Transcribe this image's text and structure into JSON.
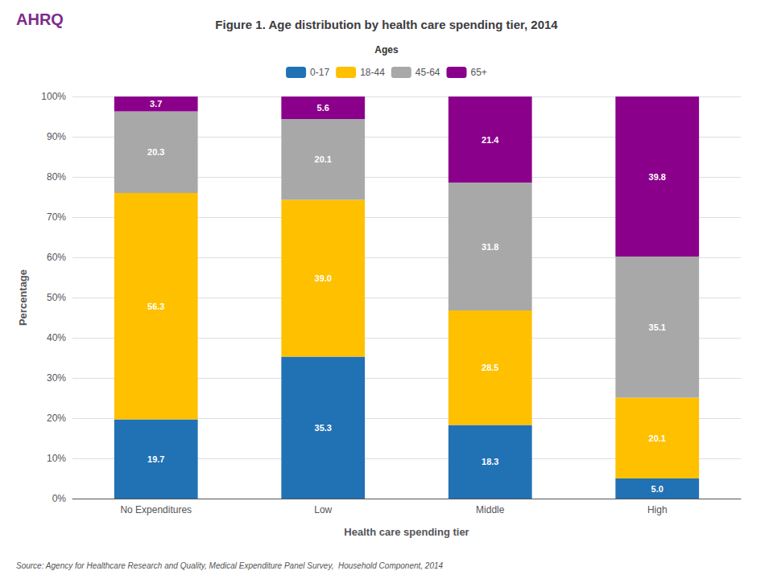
{
  "chart_data": {
    "type": "bar",
    "title": "Figure 1. Age distribution by health care spending tier, 2014",
    "xlabel": "Health care spending tier",
    "ylabel": "Percentage",
    "legend_title": "Ages",
    "annotations": [
      "AHRQ",
      "Source: Agency for Healthcare Research and Quality, Medical Expenditure Panel Survey,  Household Component, 2014"
    ],
    "categories": [
      "No Expenditures",
      "Low",
      "Middle",
      "High"
    ],
    "series": [
      {
        "name": "0-17",
        "color": "#2171b5",
        "values": [
          19.7,
          35.3,
          18.3,
          5.0
        ],
        "value_labels": [
          "19.7",
          "35.3",
          "18.3",
          "5.0"
        ]
      },
      {
        "name": "18-44",
        "color": "#ffc000",
        "values": [
          56.3,
          39.0,
          28.5,
          20.1
        ],
        "value_labels": [
          "56.3",
          "39.0",
          "28.5",
          "20.1"
        ]
      },
      {
        "name": "45-64",
        "color": "#a8a8a8",
        "values": [
          20.3,
          20.1,
          31.8,
          35.1
        ],
        "value_labels": [
          "20.3",
          "20.1",
          "31.8",
          "35.1"
        ]
      },
      {
        "name": "65+",
        "color": "#8b008b",
        "values": [
          3.7,
          5.6,
          21.4,
          39.8
        ],
        "value_labels": [
          "3.7",
          "5.6",
          "21.4",
          "39.8"
        ]
      }
    ],
    "stacked": true,
    "data_labels": true,
    "ylim": [
      0,
      100
    ],
    "yticks": [
      {
        "value": 0,
        "label": "0%"
      },
      {
        "value": 10,
        "label": "10%"
      },
      {
        "value": 20,
        "label": "20%"
      },
      {
        "value": 30,
        "label": "30%"
      },
      {
        "value": 40,
        "label": "40%"
      },
      {
        "value": 50,
        "label": "50%"
      },
      {
        "value": 60,
        "label": "60%"
      },
      {
        "value": 70,
        "label": "70%"
      },
      {
        "value": 80,
        "label": "80%"
      },
      {
        "value": 90,
        "label": "90%"
      },
      {
        "value": 100,
        "label": "100%"
      }
    ],
    "grid": true,
    "legend": "top"
  }
}
